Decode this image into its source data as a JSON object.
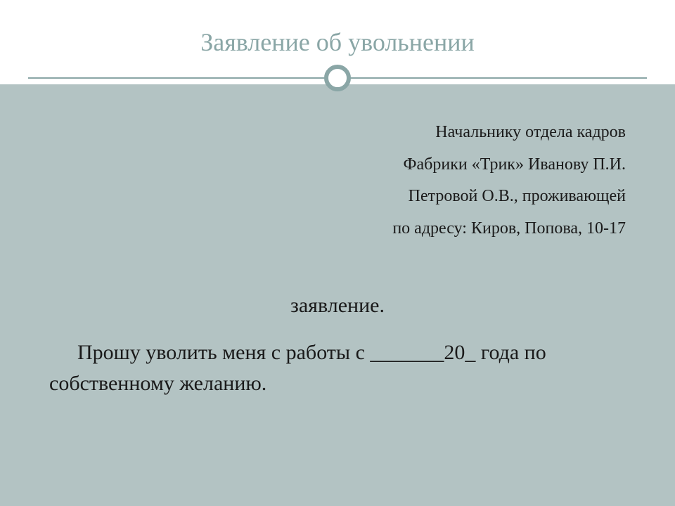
{
  "colors": {
    "title_bg": "#ffffff",
    "title_text": "#8aa6a6",
    "body_bg": "#b3c3c3",
    "body_text": "#1a1a1a",
    "divider_line": "#8aa6a6",
    "divider_circle_border": "#8aa6a6",
    "divider_circle_fill": "#ffffff"
  },
  "title": "Заявление об увольнении",
  "addressee": {
    "lines": [
      "Начальнику отдела кадров",
      "Фабрики «Трик»  Иванову П.И.",
      "Петровой О.В., проживающей",
      "по адресу: Киров, Попова, 10-17"
    ]
  },
  "subject": "заявление.",
  "body": "Прошу уволить меня с работы с _______20_ года по собственному желанию.",
  "typography": {
    "title_fontsize": 36,
    "addressee_fontsize": 24,
    "subject_fontsize": 30,
    "body_fontsize": 30
  }
}
